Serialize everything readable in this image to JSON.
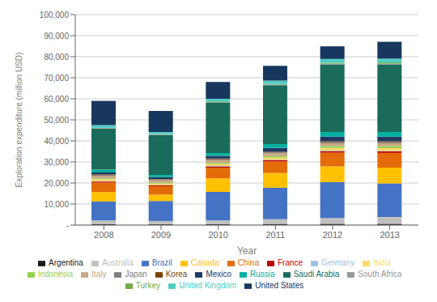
{
  "chart_data": {
    "type": "bar",
    "stacked": true,
    "grid": true,
    "legend": "bottom",
    "xlabel": "Year",
    "ylabel": "Exploration expenditure (million USD)",
    "categories": [
      "2008",
      "2009",
      "2010",
      "2011",
      "2012",
      "2013"
    ],
    "series": [
      {
        "name": "Argentina",
        "color": "#1a1a1a",
        "values": [
          400,
          350,
          450,
          550,
          600,
          600
        ]
      },
      {
        "name": "Australia",
        "color": "#c0c0c0",
        "values": [
          1800,
          1600,
          1800,
          2200,
          2800,
          3200
        ]
      },
      {
        "name": "Brazil",
        "color": "#4472c4",
        "values": [
          9000,
          9500,
          13500,
          15000,
          17000,
          16000
        ]
      },
      {
        "name": "Canada",
        "color": "#ffc000",
        "values": [
          4500,
          3000,
          6500,
          7000,
          7500,
          7500
        ]
      },
      {
        "name": "China",
        "color": "#e36c09",
        "values": [
          4500,
          4000,
          5000,
          5500,
          6500,
          7000
        ]
      },
      {
        "name": "France",
        "color": "#c00000",
        "values": [
          500,
          450,
          600,
          650,
          750,
          750
        ]
      },
      {
        "name": "Germany",
        "color": "#9dc3e6",
        "values": [
          150,
          120,
          180,
          180,
          220,
          220
        ]
      },
      {
        "name": "India",
        "color": "#ffd966",
        "values": [
          850,
          700,
          900,
          1000,
          1300,
          1300
        ]
      },
      {
        "name": "Indonesia",
        "color": "#92d050",
        "values": [
          450,
          400,
          600,
          700,
          900,
          1000
        ]
      },
      {
        "name": "Italy",
        "color": "#c8a882",
        "values": [
          1300,
          1200,
          1300,
          1300,
          1300,
          1300
        ]
      },
      {
        "name": "Japan",
        "color": "#808080",
        "values": [
          400,
          350,
          420,
          420,
          500,
          500
        ]
      },
      {
        "name": "Korea",
        "color": "#7b3f00",
        "values": [
          250,
          250,
          350,
          350,
          450,
          450
        ]
      },
      {
        "name": "Mexico",
        "color": "#1f3864",
        "values": [
          900,
          900,
          1300,
          1800,
          2200,
          2200
        ]
      },
      {
        "name": "Russia",
        "color": "#00b0a0",
        "values": [
          1300,
          1000,
          1300,
          1800,
          2200,
          2200
        ]
      },
      {
        "name": "Saudi Arabia",
        "color": "#1a6b5a",
        "values": [
          19500,
          19000,
          24000,
          28000,
          32000,
          32000
        ]
      },
      {
        "name": "South Africa",
        "color": "#969696",
        "values": [
          250,
          250,
          260,
          350,
          450,
          450
        ]
      },
      {
        "name": "Turkey",
        "color": "#70ad47",
        "values": [
          150,
          150,
          250,
          250,
          450,
          600
        ]
      },
      {
        "name": "United Kingdom",
        "color": "#4ecdc4",
        "values": [
          1300,
          1000,
          1300,
          1600,
          1800,
          1800
        ]
      },
      {
        "name": "United States",
        "color": "#17375e",
        "values": [
          11500,
          10000,
          8000,
          7000,
          6000,
          8000
        ]
      }
    ],
    "ylim": [
      0,
      100000
    ],
    "yticks": [
      {
        "value": 0,
        "label": "-"
      },
      {
        "value": 10000,
        "label": "10,000"
      },
      {
        "value": 20000,
        "label": "20,000"
      },
      {
        "value": 30000,
        "label": "30,000"
      },
      {
        "value": 40000,
        "label": "40,000"
      },
      {
        "value": 50000,
        "label": "50,000"
      },
      {
        "value": 60000,
        "label": "60,000"
      },
      {
        "value": 70000,
        "label": "70,000"
      },
      {
        "value": 80000,
        "label": "80,000"
      },
      {
        "value": 90000,
        "label": "90,000"
      },
      {
        "value": 100000,
        "label": "100,000"
      }
    ]
  }
}
